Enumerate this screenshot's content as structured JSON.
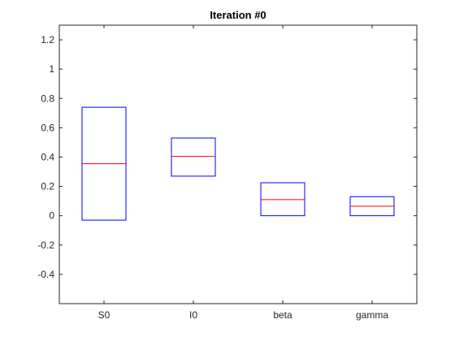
{
  "chart_data": {
    "type": "box",
    "title": "Iteration #0",
    "xlabel": "",
    "ylabel": "",
    "categories": [
      "S0",
      "I0",
      "beta",
      "gamma"
    ],
    "boxes": [
      {
        "category": "S0",
        "low": -0.03,
        "median": 0.355,
        "high": 0.74
      },
      {
        "category": "I0",
        "low": 0.27,
        "median": 0.405,
        "high": 0.53
      },
      {
        "category": "beta",
        "low": 0.0,
        "median": 0.11,
        "high": 0.225
      },
      {
        "category": "gamma",
        "low": 0.0,
        "median": 0.065,
        "high": 0.13
      }
    ],
    "ylim": [
      -0.6,
      1.3
    ],
    "yticks": [
      -0.4,
      -0.2,
      0,
      0.2,
      0.4,
      0.6,
      0.8,
      1,
      1.2
    ],
    "ytick_labels": [
      "-0.4",
      "-0.2",
      "0",
      "0.2",
      "0.4",
      "0.6",
      "0.8",
      "1",
      "1.2"
    ],
    "grid": false,
    "legend": "none",
    "colors": {
      "box": "#0000ff",
      "median": "#ff0000",
      "axis": "#262626"
    }
  }
}
